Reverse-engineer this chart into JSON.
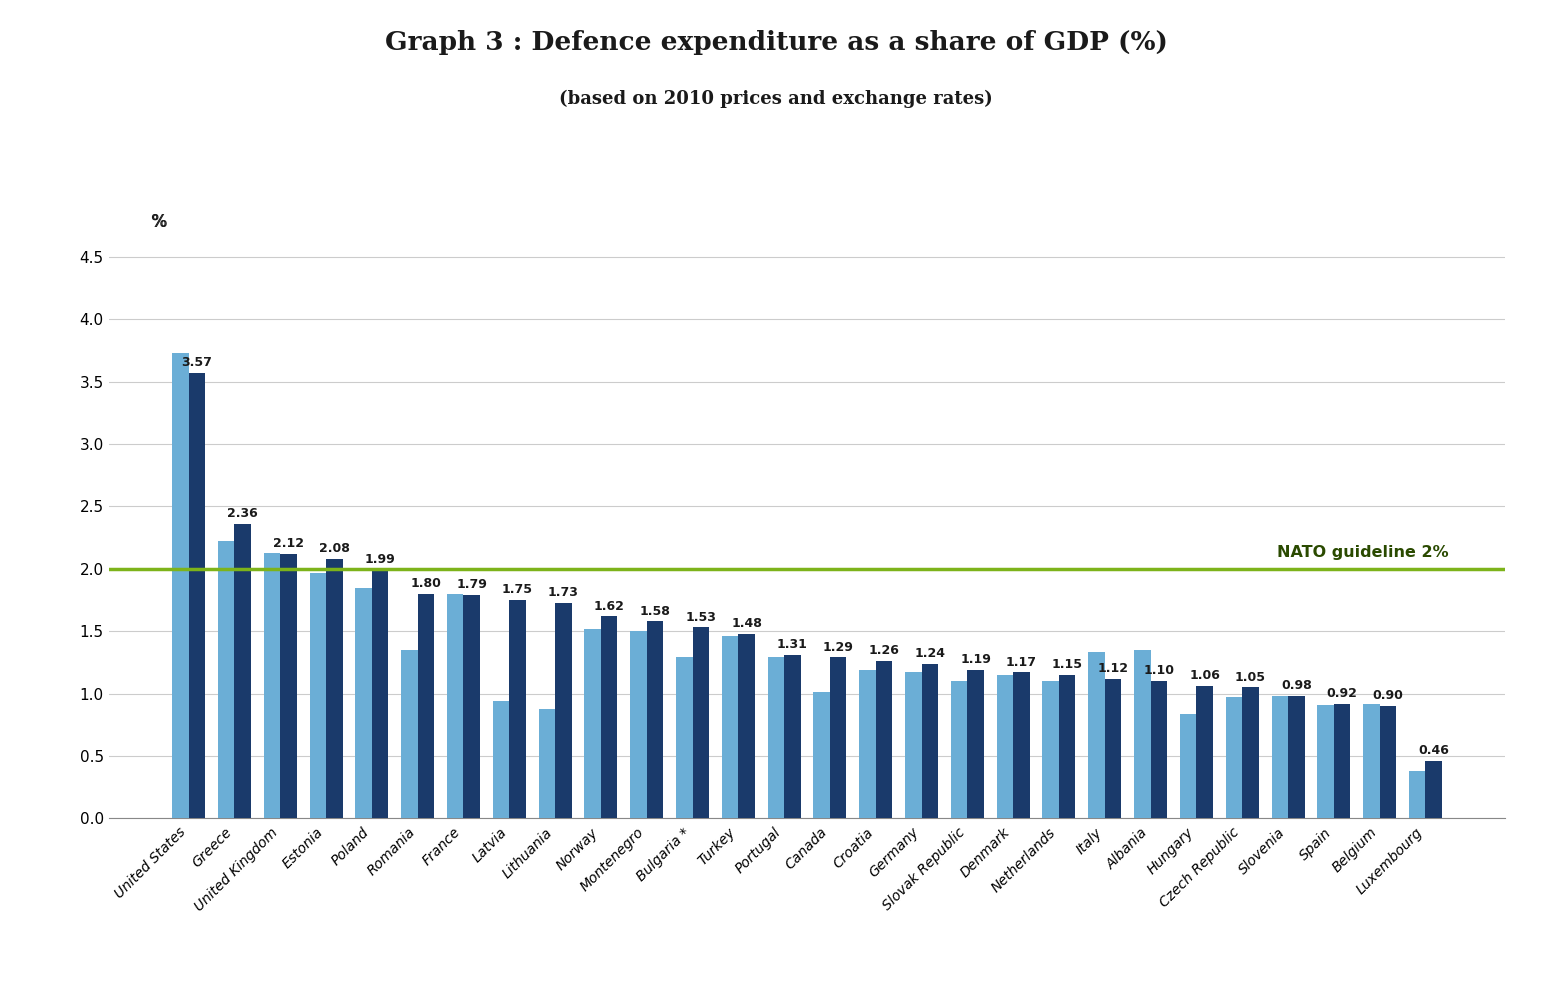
{
  "title": "Graph 3 : Defence expenditure as a share of GDP (%)",
  "subtitle": "(based on 2010 prices and exchange rates)",
  "ylabel": "%",
  "nato_guideline": 2.0,
  "nato_label": "NATO guideline 2%",
  "ylim": [
    0,
    4.8
  ],
  "yticks": [
    0.0,
    0.5,
    1.0,
    1.5,
    2.0,
    2.5,
    3.0,
    3.5,
    4.0,
    4.5
  ],
  "countries": [
    "United States",
    "Greece",
    "United Kingdom",
    "Estonia",
    "Poland",
    "Romania",
    "France",
    "Latvia",
    "Lithuania",
    "Norway",
    "Montenegro",
    "Bulgaria *",
    "Turkey",
    "Portugal",
    "Canada",
    "Croatia",
    "Germany",
    "Slovak Republic",
    "Denmark",
    "Netherlands",
    "Italy",
    "Albania",
    "Hungary",
    "Czech Republic",
    "Slovenia",
    "Spain",
    "Belgium",
    "Luxembourg"
  ],
  "values_2017e": [
    3.57,
    2.36,
    2.12,
    2.08,
    1.99,
    1.8,
    1.79,
    1.75,
    1.73,
    1.62,
    1.58,
    1.53,
    1.48,
    1.31,
    1.29,
    1.26,
    1.24,
    1.19,
    1.17,
    1.15,
    1.12,
    1.1,
    1.06,
    1.05,
    0.98,
    0.92,
    0.9,
    0.46
  ],
  "values_2014": [
    3.73,
    2.22,
    2.13,
    1.97,
    1.85,
    1.35,
    1.8,
    0.94,
    0.88,
    1.52,
    1.5,
    1.29,
    1.46,
    1.29,
    1.01,
    1.19,
    1.17,
    1.1,
    1.15,
    1.1,
    1.33,
    1.35,
    0.84,
    0.97,
    0.98,
    0.91,
    0.92,
    0.38
  ],
  "color_2014": "#6baed6",
  "color_2017e": "#1a3a6b",
  "background_color": "#ffffff",
  "grid_color": "#cccccc",
  "title_fontsize": 19,
  "subtitle_fontsize": 13,
  "tick_fontsize": 11,
  "annotation_fontsize": 9,
  "legend_fontsize": 13,
  "xtick_fontsize": 10
}
